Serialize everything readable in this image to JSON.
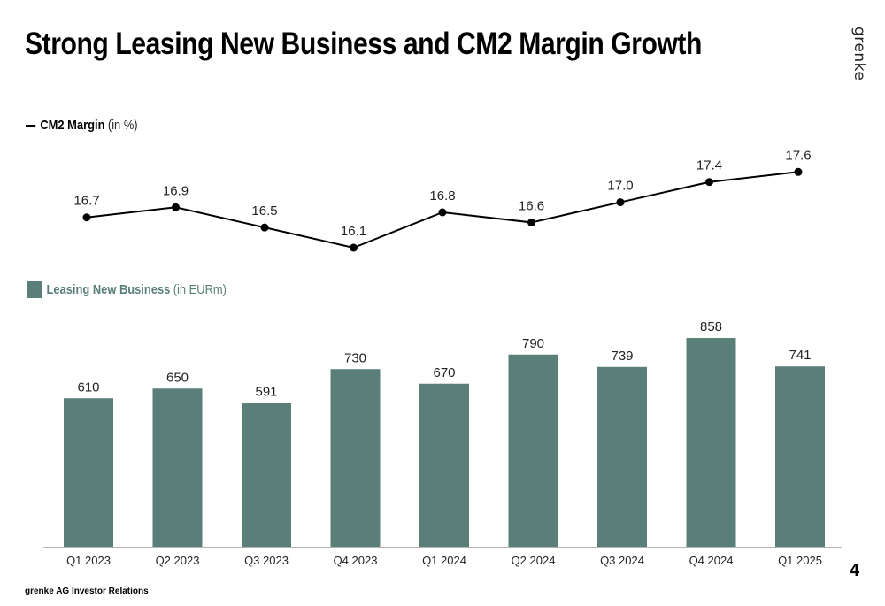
{
  "slide": {
    "title": "Strong Leasing New Business and CM2 Margin Growth",
    "logo_text": "grenke",
    "page_number": "4",
    "footer": "grenke AG Investor Relations"
  },
  "legend": {
    "line_name": "CM2 Margin",
    "line_unit": "(in %)",
    "bar_name": "Leasing New Business",
    "bar_unit": "(in EURm)"
  },
  "colors": {
    "bar": "#5a7f79",
    "line": "#000000"
  },
  "chart_data": {
    "type": "bar",
    "categories": [
      "Q1 2023",
      "Q2 2023",
      "Q3 2023",
      "Q4 2023",
      "Q1 2024",
      "Q2 2024",
      "Q3 2024",
      "Q4 2024",
      "Q1 2025"
    ],
    "series": [
      {
        "name": "CM2 Margin",
        "type": "line",
        "unit": "(in %)",
        "values": [
          16.7,
          16.9,
          16.5,
          16.1,
          16.8,
          16.6,
          17.0,
          17.4,
          17.6
        ],
        "labels": [
          "16.7",
          "16.9",
          "16.5",
          "16.1",
          "16.8",
          "16.6",
          "17.0",
          "17.4",
          "17.6"
        ]
      },
      {
        "name": "Leasing New Business",
        "type": "bar",
        "unit": "(in EURm)",
        "values": [
          610,
          650,
          591,
          730,
          670,
          790,
          739,
          858,
          741
        ],
        "labels": [
          "610",
          "650",
          "591",
          "730",
          "670",
          "790",
          "739",
          "858",
          "741"
        ]
      }
    ]
  }
}
